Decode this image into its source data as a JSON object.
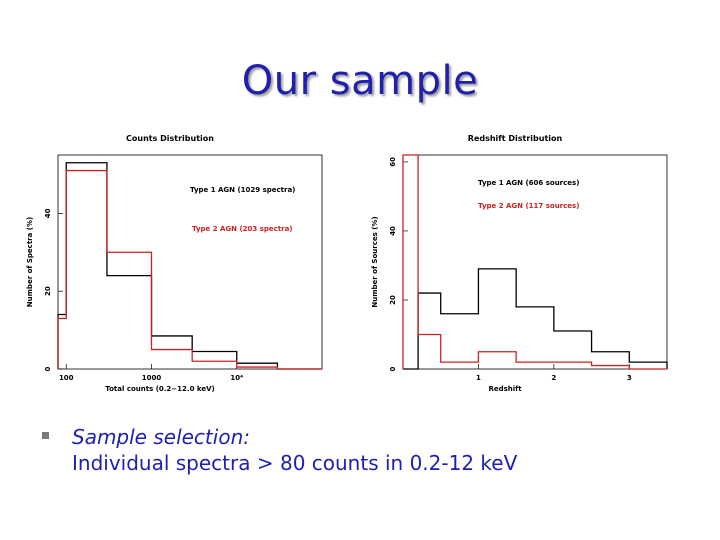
{
  "slide": {
    "title": "Our sample",
    "bullet_heading": "Sample selection:",
    "bullet_text": "Individual spectra > 80 counts in 0.2-12 keV"
  },
  "colors": {
    "title": "#1f1fb0",
    "type1": "#000000",
    "type2": "#cc2222",
    "text": "#1f1fb0"
  },
  "chart_data": [
    {
      "type": "histogram",
      "title": "Counts Distribution",
      "xlabel": "Total counts (0.2−12.0 keV)",
      "ylabel": "Number of Spectra (%)",
      "xscale": "log",
      "xlim": [
        80,
        100000
      ],
      "ylim": [
        0,
        55
      ],
      "xticks": [
        {
          "value": 100,
          "label": "100"
        },
        {
          "value": 1000,
          "label": "1000"
        },
        {
          "value": 10000,
          "label": "10⁴"
        }
      ],
      "yticks": [
        {
          "value": 0,
          "label": "0"
        },
        {
          "value": 20,
          "label": "20"
        },
        {
          "value": 40,
          "label": "40"
        }
      ],
      "bin_edges": [
        80,
        100,
        300,
        1000,
        3000,
        10000,
        30000,
        100000
      ],
      "series": [
        {
          "name": "Type 1 AGN (1029 spectra)",
          "color": "#000000",
          "values": [
            14,
            53,
            24,
            8.5,
            4.5,
            1.5,
            0
          ]
        },
        {
          "name": "Type 2 AGN (203 spectra)",
          "color": "#cc2222",
          "values": [
            13,
            51,
            30,
            5,
            2,
            0.5,
            0
          ]
        }
      ]
    },
    {
      "type": "histogram",
      "title": "Redshift Distribution",
      "xlabel": "Redshift",
      "ylabel": "Number of Sources (%)",
      "xlim": [
        0,
        3.5
      ],
      "ylim": [
        0,
        62
      ],
      "xticks": [
        {
          "value": 1,
          "label": "1"
        },
        {
          "value": 2,
          "label": "2"
        },
        {
          "value": 3,
          "label": "3"
        }
      ],
      "yticks": [
        {
          "value": 0,
          "label": "0"
        },
        {
          "value": 20,
          "label": "20"
        },
        {
          "value": 40,
          "label": "40"
        },
        {
          "value": 60,
          "label": "60"
        }
      ],
      "bin_edges": [
        0,
        0.2,
        0.5,
        1.0,
        1.5,
        2.0,
        2.5,
        3.0,
        3.5
      ],
      "series": [
        {
          "name": "Type 1 AGN (606 sources)",
          "color": "#000000",
          "values": [
            0,
            22,
            16,
            29,
            18,
            11,
            5,
            2
          ]
        },
        {
          "name": "Type 2 AGN (117 sources)",
          "color": "#cc2222",
          "values": [
            62,
            10,
            2,
            5,
            2,
            2,
            1,
            0
          ]
        }
      ]
    }
  ]
}
